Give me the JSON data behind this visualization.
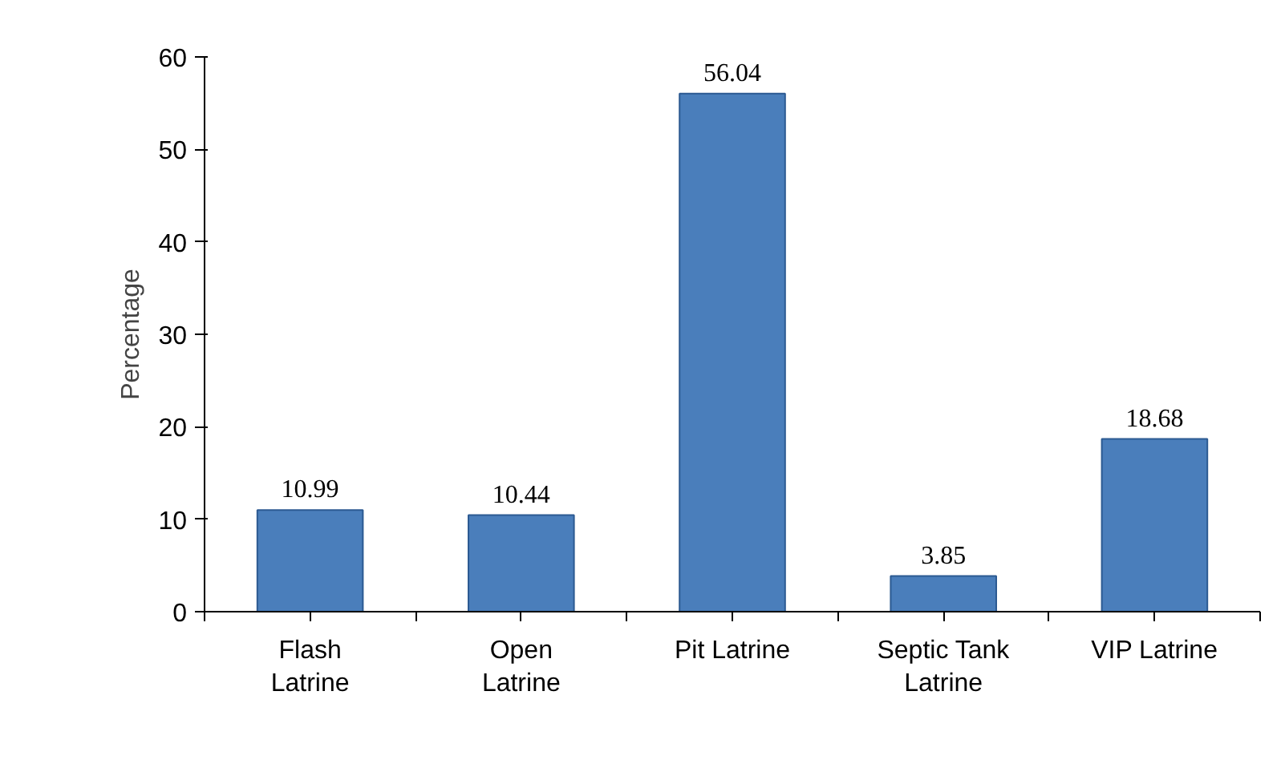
{
  "chart_data": {
    "type": "bar",
    "ylabel": "Percentage",
    "categories": [
      "Flash Latrine",
      "Open Latrine",
      "Pit Latrine",
      "Septic Tank Latrine",
      "VIP Latrine"
    ],
    "values": [
      10.99,
      10.44,
      56.04,
      3.85,
      18.68
    ],
    "color": "#4a7ebb",
    "ylim": [
      0,
      60
    ],
    "yticks": [
      0,
      10,
      20,
      30,
      40,
      50,
      60
    ],
    "grid": false,
    "data_labels": true
  }
}
